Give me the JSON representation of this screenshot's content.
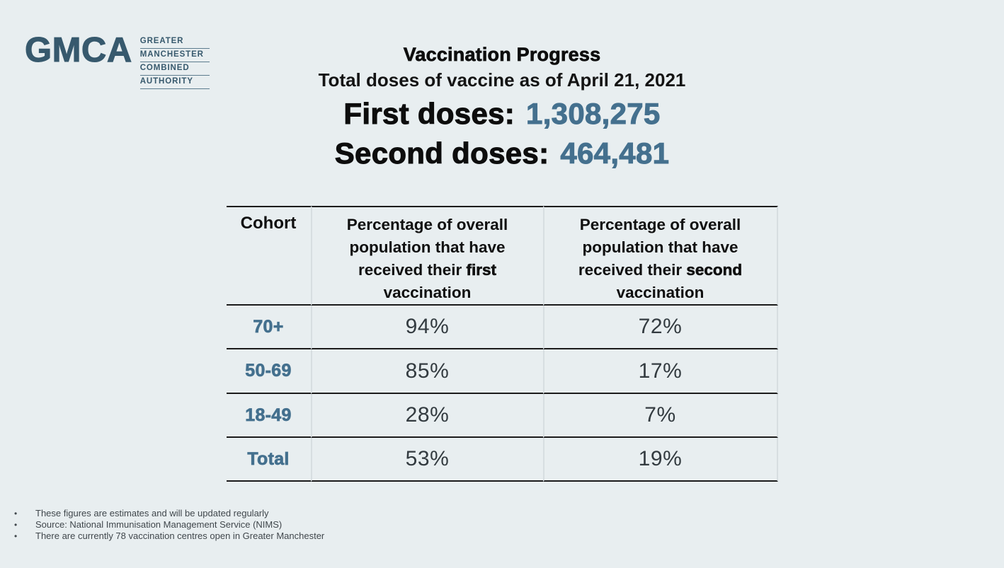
{
  "logo": {
    "acronym": "GMCA",
    "words": [
      "GREATER",
      "MANCHESTER",
      "COMBINED",
      "AUTHORITY"
    ]
  },
  "header": {
    "title": "Vaccination Progress",
    "subtitle": "Total doses of vaccine as of April 21, 2021",
    "first_doses_label": "First doses:",
    "first_doses_value": "1,308,275",
    "second_doses_label": "Second doses:",
    "second_doses_value": "464,481"
  },
  "table": {
    "columns": {
      "cohort": "Cohort",
      "first": {
        "prefix": "Percentage of overall population that have received their ",
        "em": "first",
        "suffix": " vaccination"
      },
      "second": {
        "prefix": "Percentage of overall population that have received their ",
        "em": "second",
        "suffix": " vaccination"
      }
    },
    "rows": [
      {
        "cohort": "70+",
        "first": "94%",
        "second": "72%"
      },
      {
        "cohort": "50-69",
        "first": "85%",
        "second": "17%"
      },
      {
        "cohort": "18-49",
        "first": "28%",
        "second": "7%"
      },
      {
        "cohort": "Total",
        "first": "53%",
        "second": "19%"
      }
    ]
  },
  "footer": {
    "bullets": [
      "These figures are estimates and will be updated regularly",
      "Source: National Immunisation Management Service (NIMS)",
      "There are currently 78 vaccination centres open in Greater Manchester"
    ]
  },
  "icons": {
    "bullet": "•"
  },
  "colors": {
    "background": "#e8eef0",
    "accent_blue": "#44708e",
    "logo_blue": "#37596d",
    "line_dark": "#1b1b1b",
    "line_light": "#d7dee1",
    "text_dark": "#111111",
    "footnote_gray": "#40474c"
  },
  "chart_data": {
    "type": "table",
    "title": "Vaccination Progress",
    "subtitle": "Total doses of vaccine as of April 21, 2021",
    "first_doses_total": 1308275,
    "second_doses_total": 464481,
    "columns": [
      "Cohort",
      "Percentage of overall population that have received their first vaccination",
      "Percentage of overall population that have received their second vaccination"
    ],
    "rows": [
      [
        "70+",
        "94%",
        "72%"
      ],
      [
        "50-69",
        "85%",
        "17%"
      ],
      [
        "18-49",
        "28%",
        "7%"
      ],
      [
        "Total",
        "53%",
        "19%"
      ]
    ]
  }
}
